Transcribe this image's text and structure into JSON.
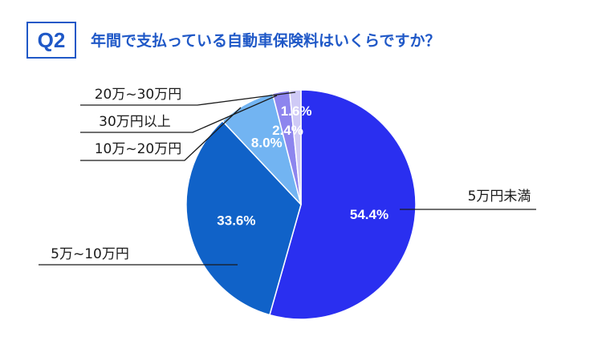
{
  "header": {
    "badge": "Q2",
    "title": "年間で支払っている自動車保険料はいくらですか？"
  },
  "chart_data": {
    "type": "pie",
    "title": "年間で支払っている自動車保険料はいくらですか？",
    "slices": [
      {
        "category": "5万円未満",
        "value": 54.4,
        "label": "54.4%",
        "color": "#2a2ff0"
      },
      {
        "category": "5万~10万円",
        "value": 33.6,
        "label": "33.6%",
        "color": "#1062c8"
      },
      {
        "category": "10万~20万円",
        "value": 8.0,
        "label": "8.0%",
        "color": "#72b4f2"
      },
      {
        "category": "30万円以上",
        "value": 2.4,
        "label": "2.4%",
        "color": "#8d85ee"
      },
      {
        "category": "20万~30万円",
        "value": 1.6,
        "label": "1.6%",
        "color": "#cfcaf6"
      }
    ]
  }
}
